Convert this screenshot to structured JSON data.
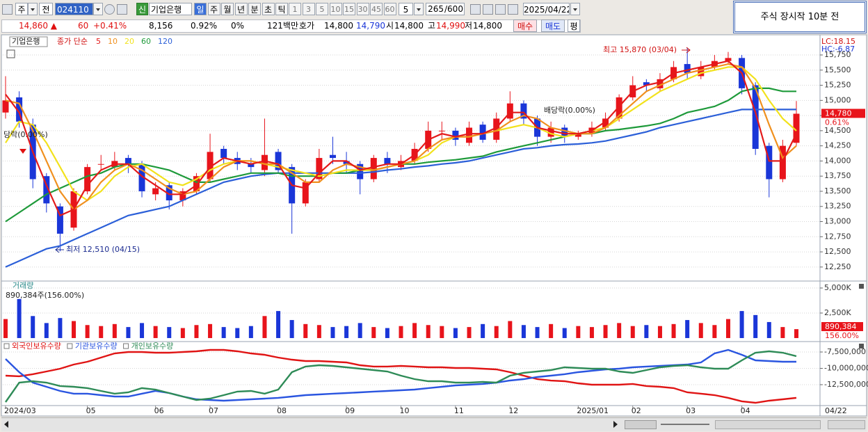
{
  "toolbar": {
    "period_unit": "주",
    "prev": "전",
    "code": "024110",
    "credit": "신",
    "name": "기업은행",
    "periods": [
      "일",
      "주",
      "월",
      "년",
      "분",
      "초",
      "틱"
    ],
    "intervals": [
      "1",
      "3",
      "5",
      "10",
      "15",
      "30",
      "45",
      "60"
    ],
    "interval_input": "5",
    "count": "265",
    "count_max": "/600",
    "date": "2025/04/22"
  },
  "info_bar": {
    "price": "14,860 ▲",
    "change": "60",
    "change_rate": "+0.41%",
    "volume": "8,156",
    "volume_rate": "0.92%",
    "rate3": "0%",
    "amount": "121백만",
    "ask_label": "호가",
    "ask": "14,800",
    "bid": "14,790",
    "open_label": "시",
    "open": "14,800",
    "high_label": "고",
    "high": "14,990",
    "low_label": "저",
    "low": "14,800",
    "buy": "매수",
    "sell": "매도",
    "avg": "평"
  },
  "notice": "주식 장시작 10분 전",
  "chart_data": [
    {
      "type": "candlestick",
      "title": "기업은행",
      "legend_label": "종가 단순",
      "categories": [
        "2024/03",
        null,
        null,
        null,
        null,
        null,
        "05",
        null,
        null,
        null,
        null,
        "06",
        null,
        null,
        null,
        "07",
        null,
        null,
        null,
        null,
        "08",
        null,
        null,
        null,
        null,
        "09",
        null,
        null,
        null,
        "10",
        null,
        null,
        null,
        "11",
        null,
        null,
        null,
        "12",
        null,
        null,
        null,
        null,
        "2025/01",
        null,
        null,
        null,
        "02",
        null,
        null,
        null,
        "03",
        null,
        null,
        null,
        "04",
        null,
        null,
        null,
        null
      ],
      "x_cursor_label": "04/22",
      "open": [
        14800,
        15050,
        14600,
        13750,
        13250,
        12900,
        13500,
        13950,
        13900,
        14050,
        13950,
        13450,
        13600,
        13350,
        13500,
        13700,
        14200,
        14050,
        13950,
        13850,
        14150,
        13900,
        13300,
        13700,
        14100,
        14000,
        13950,
        13700,
        14050,
        13900,
        14000,
        14200,
        14500,
        14500,
        14300,
        14600,
        14350,
        14700,
        14950,
        14700,
        14400,
        14550,
        14400,
        14450,
        14550,
        14700,
        15050,
        15300,
        15200,
        15350,
        15600,
        15400,
        15550,
        15650,
        15700,
        15250,
        14250,
        13700,
        14300
      ],
      "high": [
        15400,
        15150,
        14700,
        13800,
        13300,
        13550,
        13950,
        14100,
        14150,
        14100,
        14000,
        13650,
        13650,
        13550,
        13800,
        14450,
        14250,
        14150,
        14050,
        14700,
        14200,
        13950,
        13700,
        14200,
        14400,
        14150,
        14000,
        14100,
        14150,
        14100,
        14300,
        14650,
        14650,
        14550,
        14650,
        14650,
        14800,
        15150,
        15000,
        14750,
        14650,
        14600,
        14500,
        14650,
        14800,
        15100,
        15400,
        15350,
        15450,
        15650,
        15870,
        15650,
        15750,
        15800,
        15750,
        15300,
        14300,
        14350,
        14990
      ],
      "low": [
        14700,
        14550,
        13550,
        13150,
        12510,
        12850,
        13450,
        13850,
        13850,
        13800,
        13400,
        13350,
        13200,
        13250,
        13450,
        13650,
        13950,
        13850,
        13800,
        13750,
        13800,
        12800,
        13250,
        13650,
        13950,
        13800,
        13450,
        13650,
        13800,
        13850,
        13950,
        14150,
        14350,
        14250,
        14250,
        14300,
        14300,
        14650,
        14600,
        14250,
        14300,
        14300,
        14350,
        14400,
        14500,
        14650,
        15000,
        15150,
        15150,
        15300,
        15350,
        15350,
        15500,
        15600,
        15100,
        14100,
        13400,
        13650,
        14250
      ],
      "close": [
        15000,
        14650,
        13700,
        13300,
        12800,
        13500,
        13900,
        13950,
        14000,
        13950,
        13500,
        13550,
        13350,
        13500,
        13750,
        14150,
        14050,
        13950,
        13900,
        14100,
        13850,
        13300,
        13650,
        14050,
        14050,
        13950,
        13700,
        14050,
        13950,
        14000,
        14200,
        14500,
        14500,
        14350,
        14550,
        14350,
        14700,
        14950,
        14700,
        14400,
        14550,
        14400,
        14450,
        14550,
        14700,
        15050,
        15250,
        15250,
        15350,
        15550,
        15450,
        15550,
        15650,
        15700,
        15200,
        14200,
        13700,
        14250,
        14780
      ],
      "up_color": "#e8141b",
      "down_color": "#1a36d8",
      "series": [
        {
          "name": "5",
          "color": "#e31a1a",
          "values": [
            15100,
            14800,
            14150,
            13600,
            13100,
            13200,
            13600,
            13850,
            13950,
            13950,
            13750,
            13600,
            13450,
            13450,
            13600,
            13900,
            14050,
            14000,
            13950,
            14000,
            13950,
            13600,
            13550,
            13800,
            14000,
            14000,
            13850,
            13900,
            13950,
            13950,
            14100,
            14350,
            14450,
            14400,
            14450,
            14450,
            14550,
            14800,
            14800,
            14550,
            14500,
            14450,
            14450,
            14500,
            14650,
            14900,
            15150,
            15250,
            15300,
            15450,
            15500,
            15550,
            15600,
            15650,
            15450,
            14800,
            14000,
            14000,
            14450
          ]
        },
        {
          "name": "10",
          "color": "#f0901e",
          "values": [
            15000,
            14950,
            14500,
            14000,
            13500,
            13200,
            13350,
            13650,
            13850,
            13950,
            13850,
            13700,
            13550,
            13450,
            13500,
            13700,
            13900,
            14000,
            14000,
            13950,
            13950,
            13800,
            13650,
            13650,
            13850,
            13950,
            13900,
            13850,
            13900,
            13950,
            14000,
            14200,
            14350,
            14400,
            14400,
            14450,
            14500,
            14650,
            14750,
            14700,
            14550,
            14500,
            14450,
            14450,
            14550,
            14750,
            14950,
            15150,
            15250,
            15350,
            15450,
            15500,
            15550,
            15600,
            15550,
            15200,
            14600,
            14050,
            14250
          ]
        },
        {
          "name": "20",
          "color": "#f2e21c",
          "values": [
            14300,
            14650,
            14600,
            14300,
            13900,
            13500,
            13350,
            13500,
            13750,
            13900,
            13950,
            13800,
            13650,
            13600,
            13700,
            13850,
            13950,
            14000,
            14000,
            13950,
            13900,
            13850,
            13800,
            13750,
            13800,
            13850,
            13850,
            13850,
            13900,
            13950,
            14000,
            14100,
            14300,
            14400,
            14400,
            14450,
            14500,
            14550,
            14600,
            14550,
            14450,
            14400,
            14450,
            14500,
            14550,
            14700,
            14850,
            15000,
            15150,
            15250,
            15350,
            15450,
            15500,
            15550,
            15550,
            15350,
            15000,
            14700,
            14500
          ]
        },
        {
          "name": "60",
          "color": "#1e9a3a",
          "values": [
            13000,
            13150,
            13300,
            13450,
            13550,
            13650,
            13750,
            13800,
            13900,
            13950,
            13950,
            13900,
            13850,
            13750,
            13650,
            13650,
            13700,
            13750,
            13800,
            13800,
            13800,
            13750,
            13750,
            13750,
            13800,
            13800,
            13850,
            13850,
            13900,
            13950,
            13950,
            13980,
            14000,
            14020,
            14050,
            14080,
            14150,
            14200,
            14250,
            14300,
            14350,
            14400,
            14450,
            14450,
            14500,
            14520,
            14550,
            14580,
            14620,
            14700,
            14800,
            14850,
            14900,
            15000,
            15150,
            15200,
            15200,
            15150,
            15150
          ]
        },
        {
          "name": "120",
          "color": "#2b5fd8",
          "values": [
            12250,
            12350,
            12450,
            12550,
            12600,
            12700,
            12800,
            12900,
            13000,
            13100,
            13150,
            13200,
            13250,
            13350,
            13450,
            13550,
            13650,
            13700,
            13750,
            13780,
            13800,
            13800,
            13800,
            13800,
            13800,
            13800,
            13800,
            13820,
            13850,
            13870,
            13900,
            13920,
            13950,
            13970,
            14000,
            14050,
            14100,
            14150,
            14200,
            14220,
            14250,
            14270,
            14280,
            14300,
            14330,
            14380,
            14430,
            14480,
            14550,
            14600,
            14650,
            14700,
            14750,
            14800,
            14850,
            14850,
            14850,
            14850,
            14850
          ]
        }
      ],
      "ylim": [
        12030,
        16060
      ],
      "yticks": [
        {
          "value": 12250,
          "label": "12,250"
        },
        {
          "value": 12500,
          "label": "12,500"
        },
        {
          "value": 12750,
          "label": "12,750"
        },
        {
          "value": 13000,
          "label": "13,000"
        },
        {
          "value": 13250,
          "label": "13,250"
        },
        {
          "value": 13500,
          "label": "13,500"
        },
        {
          "value": 13750,
          "label": "13,750"
        },
        {
          "value": 14000,
          "label": "14,000"
        },
        {
          "value": 14250,
          "label": "14,250"
        },
        {
          "value": 14500,
          "label": "14,500"
        },
        {
          "value": 14750,
          "label": "14,750"
        },
        {
          "value": 15000,
          "label": "15,000"
        },
        {
          "value": 15250,
          "label": "15,250"
        },
        {
          "value": 15500,
          "label": "15,500"
        },
        {
          "value": 15750,
          "label": "15,750"
        }
      ],
      "grid": true,
      "annotations": {
        "high": "최고 15,870 (03/04)",
        "low": "최저 12,510 (04/15)",
        "ex_dividend": "배당락(0.00%)",
        "ex_dividend_left": "당락(0.00%)"
      },
      "lc": "LC:18.15",
      "hc": "HC:-6.87",
      "price_tag": "14,780",
      "change_tag": "0.61%"
    },
    {
      "type": "bar",
      "title": "거래량",
      "current_label": "890,384주(156.00%)",
      "values": [
        1900,
        3900,
        2200,
        1500,
        2000,
        1700,
        1300,
        1200,
        1400,
        1100,
        1500,
        1200,
        1100,
        1000,
        1300,
        1400,
        1100,
        1000,
        1200,
        2200,
        2700,
        1800,
        1400,
        1300,
        1100,
        1200,
        1500,
        1100,
        1000,
        1200,
        1500,
        1300,
        1200,
        1000,
        1100,
        1400,
        1200,
        1700,
        1300,
        1100,
        1400,
        1000,
        1200,
        1100,
        1300,
        1500,
        1200,
        1300,
        1200,
        1400,
        1800,
        1500,
        1300,
        1900,
        2700,
        2300,
        1600,
        1100,
        890.384
      ],
      "ylim": [
        -280,
        5625
      ],
      "yticks": [
        {
          "value": 2500,
          "label": "2,500K"
        },
        {
          "value": 5000,
          "label": "5,000K"
        }
      ],
      "tag": "890,384",
      "tag_rate": "156.00%"
    },
    {
      "type": "line",
      "series": [
        {
          "name": "외국인보유수량",
          "color": "#e01414",
          "values": [
            -11120000,
            -11220000,
            -10900000,
            -10480000,
            -10050000,
            -9420000,
            -8990000,
            -8350000,
            -7710000,
            -7500000,
            -7500000,
            -7610000,
            -7610000,
            -7500000,
            -7390000,
            -7180000,
            -7180000,
            -7390000,
            -7710000,
            -7930000,
            -8350000,
            -8670000,
            -8880000,
            -8880000,
            -8990000,
            -9100000,
            -9520000,
            -9730000,
            -9730000,
            -9630000,
            -9730000,
            -9840000,
            -9840000,
            -9950000,
            -9950000,
            -10050000,
            -10160000,
            -10590000,
            -11120000,
            -11650000,
            -11870000,
            -11970000,
            -12290000,
            -12500000,
            -12500000,
            -12500000,
            -12390000,
            -12710000,
            -12820000,
            -13030000,
            -13670000,
            -13880000,
            -14100000,
            -14520000,
            -15050000,
            -15270000,
            -14950000,
            -14740000,
            -14520000
          ]
        },
        {
          "name": "기관보유수량",
          "color": "#2a55e0",
          "values": [
            -8560000,
            -10590000,
            -12180000,
            -12820000,
            -13460000,
            -13880000,
            -13880000,
            -14100000,
            -14310000,
            -14310000,
            -13880000,
            -13460000,
            -13780000,
            -14310000,
            -14740000,
            -14840000,
            -14950000,
            -14840000,
            -14740000,
            -14630000,
            -14520000,
            -14310000,
            -14100000,
            -13990000,
            -13880000,
            -13780000,
            -13670000,
            -13560000,
            -13460000,
            -13350000,
            -13250000,
            -13030000,
            -12820000,
            -12610000,
            -12500000,
            -12390000,
            -12180000,
            -11860000,
            -11650000,
            -11330000,
            -11120000,
            -10900000,
            -10590000,
            -10370000,
            -10160000,
            -10050000,
            -9840000,
            -9730000,
            -9630000,
            -9520000,
            -9420000,
            -9100000,
            -7710000,
            -7180000,
            -7930000,
            -8780000,
            -8880000,
            -8990000,
            -8990000
          ]
        },
        {
          "name": "개인보유수량",
          "color": "#2e8b57",
          "values": [
            -15160000,
            -12180000,
            -11970000,
            -12180000,
            -12710000,
            -12820000,
            -13030000,
            -13460000,
            -13880000,
            -13670000,
            -13030000,
            -13250000,
            -13780000,
            -14310000,
            -14840000,
            -14630000,
            -14100000,
            -13560000,
            -13460000,
            -13880000,
            -13250000,
            -10590000,
            -9730000,
            -9520000,
            -9630000,
            -9840000,
            -10050000,
            -10270000,
            -10480000,
            -11120000,
            -11650000,
            -11970000,
            -11970000,
            -12180000,
            -12180000,
            -12080000,
            -12180000,
            -11120000,
            -10690000,
            -10480000,
            -10270000,
            -9840000,
            -9950000,
            -10050000,
            -10050000,
            -10480000,
            -10690000,
            -10270000,
            -9840000,
            -9630000,
            -9520000,
            -9840000,
            -10050000,
            -10050000,
            -8780000,
            -7610000,
            -7390000,
            -7610000,
            -8140000
          ]
        }
      ],
      "ylim": [
        -15590000,
        -6010000
      ],
      "yticks": [
        {
          "value": -12500000,
          "label": "-12,500,000"
        },
        {
          "value": -10000000,
          "label": "-10,000,000"
        },
        {
          "value": -7500000,
          "label": "-7,500,000"
        }
      ]
    }
  ]
}
